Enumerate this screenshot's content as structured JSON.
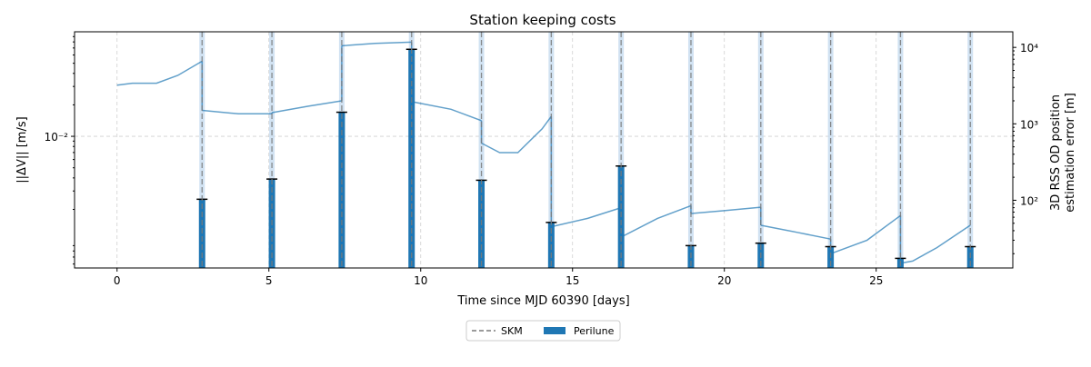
{
  "chart_data": {
    "type": "bar",
    "title": "Station keeping costs",
    "xlabel": "Time since MJD 60390 [days]",
    "ylabel_left": "||ΔV|| [m/s]",
    "ylabel_right_line1": "3D RSS OD position",
    "ylabel_right_line2": "estimation error [m]",
    "xlim": [
      -1.4,
      29.5
    ],
    "x_ticks": [
      0,
      5,
      10,
      15,
      20,
      25
    ],
    "y_left": {
      "scale": "log",
      "ylim": [
        0.00055,
        0.1
      ],
      "ticks": [
        {
          "value": 0.01,
          "label": "10⁻²"
        }
      ]
    },
    "y_right": {
      "scale": "log",
      "ylim": [
        13,
        16000
      ],
      "ticks": [
        {
          "value": 100,
          "label": "10²"
        },
        {
          "value": 1000,
          "label": "10³"
        },
        {
          "value": 10000,
          "label": "10⁴"
        }
      ]
    },
    "grid": true,
    "legend": {
      "placement": "bottom-center",
      "entries": [
        {
          "label": "SKM",
          "style": "dashed-line"
        },
        {
          "label": "Perilune",
          "style": "bar"
        }
      ]
    },
    "skm_days": [
      2.8,
      5.1,
      7.4,
      9.7,
      12.0,
      14.3,
      16.6,
      18.9,
      21.2,
      23.5,
      25.8,
      28.1
    ],
    "delta_v_ms": [
      0.0025,
      0.0039,
      0.017,
      0.068,
      0.0038,
      0.0015,
      0.0052,
      0.0009,
      0.00095,
      0.00088,
      0.00068,
      0.00088
    ],
    "od_error_series": [
      {
        "segment": 1,
        "points": [
          [
            0,
            3200
          ],
          [
            0.5,
            3400
          ],
          [
            1.3,
            3400
          ],
          [
            2.0,
            4300
          ],
          [
            2.8,
            6600
          ]
        ]
      },
      {
        "segment": 2,
        "points": [
          [
            2.8,
            1500
          ],
          [
            4.0,
            1350
          ],
          [
            5.1,
            1350
          ]
        ]
      },
      {
        "segment": 3,
        "points": [
          [
            5.1,
            1400
          ],
          [
            6.3,
            1700
          ],
          [
            7.4,
            2000
          ]
        ]
      },
      {
        "segment": 4,
        "points": [
          [
            7.4,
            10500
          ],
          [
            8.5,
            11300
          ],
          [
            9.7,
            11700
          ]
        ]
      },
      {
        "segment": 5,
        "points": [
          [
            9.7,
            1950
          ],
          [
            11.0,
            1550
          ],
          [
            12.0,
            1100
          ]
        ]
      },
      {
        "segment": 6,
        "points": [
          [
            12.0,
            560
          ],
          [
            12.6,
            420
          ],
          [
            13.2,
            420
          ],
          [
            14.0,
            860
          ],
          [
            14.3,
            1250
          ]
        ]
      },
      {
        "segment": 7,
        "points": [
          [
            14.3,
            45
          ],
          [
            15.5,
            58
          ],
          [
            16.6,
            80
          ]
        ]
      },
      {
        "segment": 8,
        "points": [
          [
            16.6,
            33
          ],
          [
            17.8,
            58
          ],
          [
            18.9,
            85
          ]
        ]
      },
      {
        "segment": 9,
        "points": [
          [
            18.9,
            67
          ],
          [
            20.0,
            73
          ],
          [
            21.2,
            81
          ]
        ]
      },
      {
        "segment": 10,
        "points": [
          [
            21.2,
            47
          ],
          [
            22.4,
            38
          ],
          [
            23.5,
            31
          ]
        ]
      },
      {
        "segment": 11,
        "points": [
          [
            23.5,
            20
          ],
          [
            24.7,
            30
          ],
          [
            25.8,
            63
          ]
        ]
      },
      {
        "segment": 12,
        "points": [
          [
            25.8,
            15
          ],
          [
            26.2,
            16
          ],
          [
            27.0,
            24
          ],
          [
            28.1,
            47
          ]
        ]
      }
    ],
    "colors": {
      "bar": "#1f77b4",
      "line": "#1f77b4",
      "skm": "#7a7a7a",
      "skm_band": "#c6dbef",
      "cap": "#000000",
      "grid": "#d0d0d0"
    }
  }
}
